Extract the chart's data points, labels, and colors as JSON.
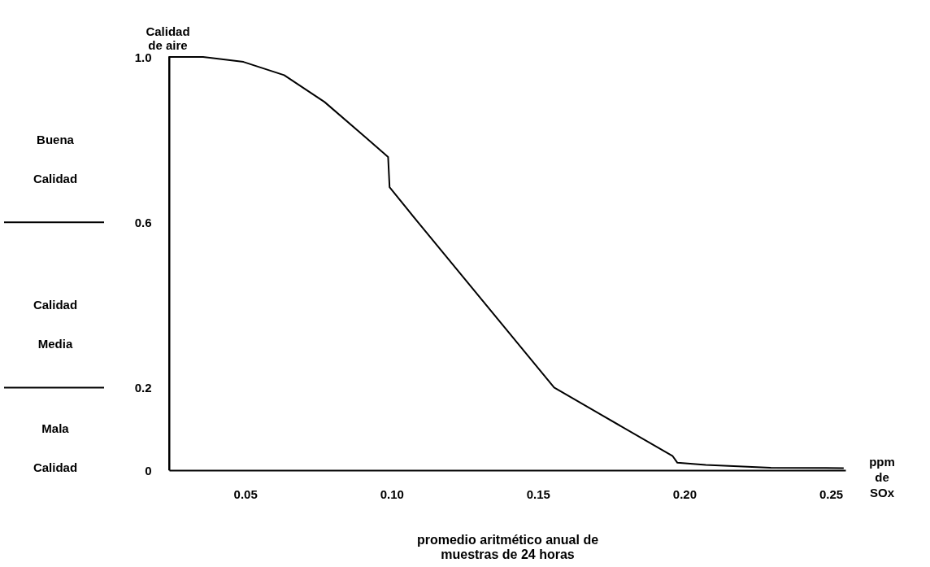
{
  "chart_data": {
    "type": "line",
    "ylabel": "Calidad de aire",
    "xlabel": "promedio aritmético anual de muestras de 24 horas",
    "x": [
      0.024,
      0.024,
      0.03,
      0.0356,
      0.0494,
      0.0633,
      0.0771,
      0.091,
      0.0988,
      0.0993,
      0.109,
      0.1555,
      0.196,
      0.1976,
      0.2073,
      0.2295,
      0.2544
    ],
    "series": [
      {
        "color": "#000000",
        "values": [
          0,
          1.0,
          1.0,
          1.0,
          0.988,
          0.956,
          0.891,
          0.806,
          0.758,
          0.685,
          0.6,
          0.2,
          0.034,
          0.018,
          0.013,
          0.006,
          0.005
        ]
      }
    ],
    "xlim": [
      0.024,
      0.255
    ],
    "ylim": [
      0,
      1.0
    ],
    "xticks": [
      {
        "value": 0.05,
        "label": "0.05"
      },
      {
        "value": 0.1,
        "label": "0.10"
      },
      {
        "value": 0.15,
        "label": "0.15"
      },
      {
        "value": 0.2,
        "label": "0.20"
      },
      {
        "value": 0.25,
        "label": "0.25"
      }
    ],
    "yticks": [
      0,
      {
        "value": 0.2,
        "label": "0.2"
      },
      {
        "value": 0.6,
        "label": "0.6"
      },
      {
        "value": 1.0,
        "label": "1.0"
      }
    ],
    "annotations": [
      "Buena Calidad",
      "Calidad Media",
      "Mala Calidad",
      "ppm de SOx"
    ],
    "grid": false,
    "legend": false,
    "marker": "none",
    "line_style": "solid"
  }
}
